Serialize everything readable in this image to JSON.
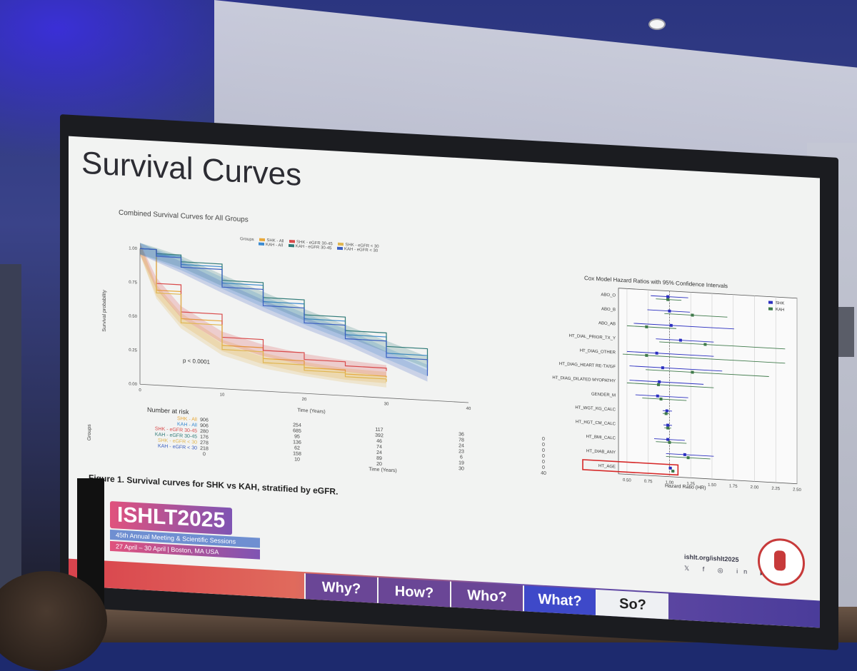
{
  "slide": {
    "title": "Survival Curves",
    "caption": "Figure 1. Survival curves for SHK vs KAH, stratified by eGFR."
  },
  "km_chart": {
    "title": "Combined Survival Curves for All Groups",
    "legend_title": "Groups",
    "legend": [
      "SHK - All",
      "SHK - eGFR 30-45",
      "SHK - eGFR < 30",
      "KAH - All",
      "KAH - eGFR 30-45",
      "KAH - eGFR < 30"
    ],
    "ylabel": "Survival probability",
    "xlabel": "Time (Years)",
    "yticks": [
      "1.00",
      "0.75",
      "0.50",
      "0.25",
      "0.00"
    ],
    "xticks": [
      "0",
      "10",
      "20",
      "30",
      "40"
    ],
    "pvalue": "p < 0.0001"
  },
  "risk_table": {
    "title": "Number at risk",
    "axis_label": "Groups",
    "xlabel": "Time (Years)",
    "xticks": [
      "0",
      "10",
      "20",
      "30",
      "40"
    ],
    "rows": [
      {
        "label": "SHK - All",
        "values": [
          "906",
          "254",
          "117",
          "36",
          "0"
        ]
      },
      {
        "label": "KAH - All",
        "values": [
          "906",
          "685",
          "392",
          "78",
          "0"
        ]
      },
      {
        "label": "SHK - eGFR 30-45",
        "values": [
          "280",
          "95",
          "46",
          "24",
          "0"
        ]
      },
      {
        "label": "KAH - eGFR 30-45",
        "values": [
          "176",
          "136",
          "74",
          "23",
          "0"
        ]
      },
      {
        "label": "SHK - eGFR < 30",
        "values": [
          "278",
          "62",
          "24",
          "6",
          "0"
        ]
      },
      {
        "label": "KAH - eGFR < 30",
        "values": [
          "218",
          "158",
          "89",
          "19",
          "0"
        ]
      }
    ]
  },
  "forest_chart": {
    "title": "Cox Model Hazard Ratios with 95% Confidence Intervals",
    "xlabel": "Hazard Ratio (HR)",
    "xticks": [
      "0.50",
      "0.75",
      "1.00",
      "1.25",
      "1.50",
      "1.75",
      "2.00",
      "2.25",
      "2.50"
    ],
    "legend": [
      "SHK",
      "KAH"
    ],
    "highlighted": "HT_AGE"
  },
  "chart_data": [
    {
      "type": "line",
      "title": "Combined Survival Curves for All Groups",
      "xlabel": "Time (Years)",
      "ylabel": "Survival probability",
      "xlim": [
        0,
        40
      ],
      "ylim": [
        0,
        1
      ],
      "x": [
        0,
        2,
        5,
        10,
        15,
        20,
        25,
        30,
        35
      ],
      "series": [
        {
          "name": "SHK - All",
          "values": [
            1.0,
            0.7,
            0.5,
            0.32,
            0.24,
            0.19,
            0.16,
            0.15,
            null
          ]
        },
        {
          "name": "SHK - eGFR 30-45",
          "values": [
            1.0,
            0.75,
            0.55,
            0.38,
            0.3,
            0.25,
            0.22,
            0.2,
            null
          ]
        },
        {
          "name": "SHK - eGFR < 30",
          "values": [
            1.0,
            0.68,
            0.47,
            0.29,
            0.21,
            0.17,
            0.14,
            0.12,
            null
          ]
        },
        {
          "name": "KAH - All",
          "values": [
            1.0,
            0.96,
            0.9,
            0.78,
            0.66,
            0.55,
            0.45,
            0.33,
            0.22
          ]
        },
        {
          "name": "KAH - eGFR 30-45",
          "values": [
            1.0,
            0.97,
            0.92,
            0.8,
            0.69,
            0.58,
            0.48,
            0.38,
            0.28
          ]
        },
        {
          "name": "KAH - eGFR < 30",
          "values": [
            1.0,
            0.95,
            0.88,
            0.75,
            0.63,
            0.52,
            0.42,
            0.3,
            0.18
          ]
        }
      ],
      "grid": false,
      "legend_position": "top"
    },
    {
      "type": "scatter",
      "title": "Cox Model Hazard Ratios with 95% Confidence Intervals",
      "xlabel": "Hazard Ratio (HR)",
      "xlim": [
        0.4,
        2.5
      ],
      "categories": [
        "ABO_O",
        "ABO_B",
        "ABO_AB",
        "HT_DIAL_PRIOR_TX_Y",
        "HT_DIAG_OTHER",
        "HT_DIAG_HEART RE-TX/GF",
        "HT_DIAG_DILATED MYOPATHY",
        "GENDER_M",
        "HT_WGT_KG_CALC",
        "HT_HGT_CM_CALC",
        "HT_BMI_CALC",
        "HT_DIAB_ANY",
        "HT_AGE"
      ],
      "series": [
        {
          "name": "SHK",
          "values": [
            0.98,
            1.0,
            1.02,
            1.13,
            0.85,
            0.92,
            0.88,
            0.86,
            0.97,
            0.98,
            0.98,
            1.18,
            1.01
          ],
          "lower": [
            0.78,
            0.74,
            0.58,
            0.84,
            0.5,
            0.53,
            0.53,
            0.6,
            0.92,
            0.93,
            0.82,
            0.96,
            0.99
          ],
          "upper": [
            1.22,
            1.24,
            1.76,
            1.52,
            1.52,
            1.62,
            1.4,
            1.22,
            1.03,
            1.03,
            1.18,
            1.52,
            1.03
          ]
        },
        {
          "name": "KAH",
          "values": [
            0.98,
            1.27,
            0.73,
            1.42,
            0.73,
            1.27,
            0.87,
            0.9,
            0.96,
            0.98,
            1.0,
            1.22,
            1.04
          ],
          "lower": [
            0.84,
            0.94,
            0.5,
            0.88,
            0.45,
            0.72,
            0.5,
            0.68,
            0.92,
            0.94,
            0.84,
            0.96,
            1.02
          ],
          "upper": [
            1.14,
            1.68,
            1.08,
            2.36,
            2.36,
            2.17,
            1.52,
            1.2,
            1.0,
            1.02,
            1.2,
            1.48,
            1.06
          ]
        }
      ],
      "grid": true,
      "legend_position": "top-right"
    }
  ],
  "footer": {
    "logo_text": "ISHLT2025",
    "logo_subtitle": "45th Annual Meeting & Scientific Sessions",
    "logo_dates": "27 April – 30 April | Boston, MA USA",
    "site": "ishlt.org/ishlt2025",
    "social_icons": "𝕏 f ◎ in ▶"
  },
  "nav_tabs": [
    {
      "label": "Why?"
    },
    {
      "label": "How?"
    },
    {
      "label": "Who?"
    },
    {
      "label": "What?"
    },
    {
      "label": "So?"
    }
  ],
  "colors": {
    "shk_all": "#e8a83a",
    "shk_30_45": "#d94a4a",
    "shk_lt30": "#e0b650",
    "kah_all": "#3c8bd0",
    "kah_30_45": "#2f7a78",
    "kah_lt30": "#3a5fc0",
    "forest_shk": "#2b2fc0",
    "forest_kah": "#3f7a4a",
    "highlight": "#d62828"
  }
}
